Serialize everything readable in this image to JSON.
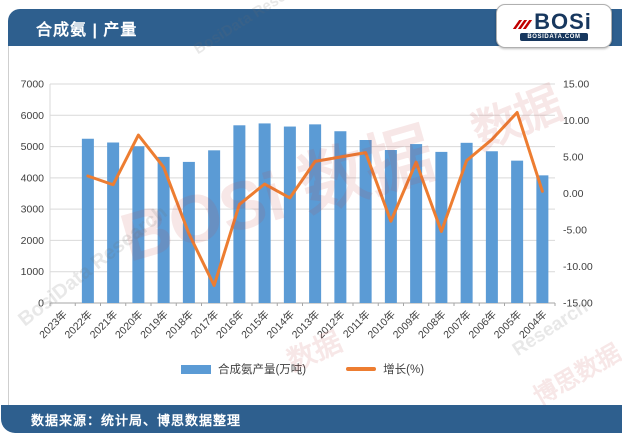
{
  "header": {
    "title": "合成氨 | 产量"
  },
  "logo": {
    "brand": "BOSi",
    "domain": "BOSIDATA.COM"
  },
  "footer": {
    "source": "数据来源：统计局、博思数据整理"
  },
  "watermarks": [
    "BOSi 数据",
    "数据",
    "BosiData Research",
    "博思数据",
    "BosiData Research",
    "数据",
    "Research"
  ],
  "colors": {
    "header_bar": "#2E5F8E",
    "bar": "#5B9BD5",
    "line": "#ED7D31",
    "grid": "#D9D9D9",
    "axis_line": "#A6A6A6",
    "axis_text": "#404040"
  },
  "chart_data": {
    "type": "bar",
    "subtype": "bar+line combo, dual axis",
    "title": "合成氨 | 产量",
    "categories": [
      "2023年",
      "2022年",
      "2021年",
      "2020年",
      "2019年",
      "2018年",
      "2017年",
      "2016年",
      "2015年",
      "2014年",
      "2013年",
      "2012年",
      "2011年",
      "2010年",
      "2009年",
      "2008年",
      "2007年",
      "2006年",
      "2005年",
      "2004年"
    ],
    "series": [
      {
        "name": "合成氨产量(万吨)",
        "type": "bar",
        "yaxis": "left",
        "color": "#5B9BD5",
        "values": [
          null,
          5250,
          5130,
          5010,
          4670,
          4510,
          4880,
          5680,
          5740,
          5640,
          5710,
          5490,
          5210,
          4890,
          5080,
          4830,
          5120,
          4850,
          4550,
          4080
        ]
      },
      {
        "name": "增长(%)",
        "type": "line",
        "yaxis": "right",
        "color": "#ED7D31",
        "values": [
          null,
          2.4,
          1.2,
          8.0,
          3.6,
          -5.5,
          -12.6,
          -1.5,
          1.3,
          -0.6,
          4.4,
          5.0,
          5.6,
          -3.8,
          4.3,
          -5.2,
          4.5,
          7.4,
          11.1,
          0.3
        ]
      }
    ],
    "left_axis": {
      "min": 0,
      "max": 7000,
      "step": 1000
    },
    "right_axis": {
      "min": -15,
      "max": 15,
      "step": 5,
      "decimals": 2
    },
    "grid": "horizontal",
    "legend_position": "bottom",
    "note": "first category 2023年 has no data; bars and line start at 2022年"
  }
}
